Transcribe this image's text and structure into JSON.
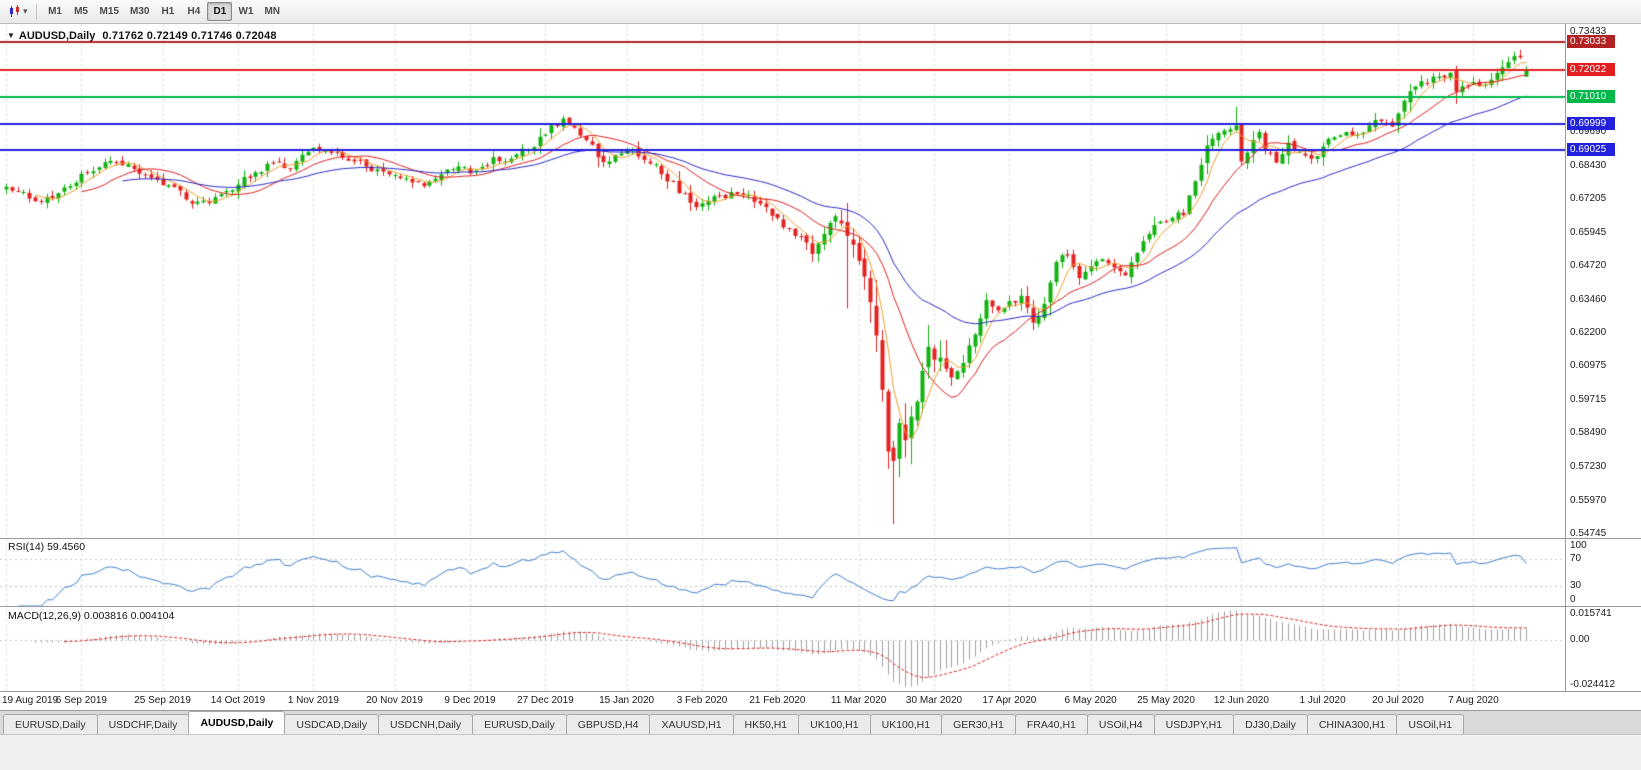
{
  "toolbar": {
    "timeframes": [
      "M1",
      "M5",
      "M15",
      "M30",
      "H1",
      "H4",
      "D1",
      "W1",
      "MN"
    ],
    "active_timeframe": "D1",
    "caret": "▾"
  },
  "chart": {
    "symbol_label": "AUDUSD,Daily",
    "ohlc_text": "0.71762 0.72149 0.71746 0.72048",
    "marker": "▼"
  },
  "rsi_panel": {
    "label": "RSI(14) 59.4560"
  },
  "macd_panel": {
    "label": "MACD(12,26,9) 0.003816 0.004104"
  },
  "tabs": {
    "items": [
      "EURUSD,Daily",
      "USDCHF,Daily",
      "AUDUSD,Daily",
      "USDCAD,Daily",
      "USDCNH,Daily",
      "EURUSD,Daily",
      "GBPUSD,H4",
      "XAUUSD,H1",
      "HK50,H1",
      "UK100,H1",
      "UK100,H1",
      "GER30,H1",
      "FRA40,H1",
      "USOil,H4",
      "USDJPY,H1",
      "DJ30,Daily",
      "CHINA300,H1",
      "USOil,H1"
    ],
    "active_index": 2
  },
  "chart_data": {
    "type": "candlestick",
    "symbol": "AUDUSD",
    "period": "Daily",
    "current_bar": {
      "open": 0.71762,
      "high": 0.72149,
      "low": 0.71746,
      "close": 0.72048
    },
    "count": 263,
    "price_axis": {
      "top": 0.7372,
      "bottom": 0.5458,
      "ticks": [
        "0.73433",
        "0.69690",
        "0.68430",
        "0.67205",
        "0.65945",
        "0.64720",
        "0.63460",
        "0.62200",
        "0.60975",
        "0.59715",
        "0.58490",
        "0.57230",
        "0.55970",
        "0.54745"
      ]
    },
    "hlines": [
      {
        "price": 0.73033,
        "color": "#b22222",
        "label": "0.73033"
      },
      {
        "price": 0.72022,
        "color": "#e02020",
        "label": "0.72022"
      },
      {
        "price": 0.7101,
        "color": "#00b84a",
        "label": "0.71010"
      },
      {
        "price": 0.69999,
        "color": "#2020dd",
        "label": "0.69999"
      },
      {
        "price": 0.69025,
        "color": "#2020dd",
        "label": "0.69025"
      }
    ],
    "date_labels": [
      {
        "i": 0,
        "t": "19 Aug 2019"
      },
      {
        "i": 13,
        "t": "6 Sep 2019"
      },
      {
        "i": 27,
        "t": "25 Sep 2019"
      },
      {
        "i": 40,
        "t": "14 Oct 2019"
      },
      {
        "i": 53,
        "t": "1 Nov 2019"
      },
      {
        "i": 67,
        "t": "20 Nov 2019"
      },
      {
        "i": 80,
        "t": "9 Dec 2019"
      },
      {
        "i": 93,
        "t": "27 Dec 2019"
      },
      {
        "i": 107,
        "t": "15 Jan 2020"
      },
      {
        "i": 120,
        "t": "3 Feb 2020"
      },
      {
        "i": 133,
        "t": "21 Feb 2020"
      },
      {
        "i": 147,
        "t": "11 Mar 2020"
      },
      {
        "i": 160,
        "t": "30 Mar 2020"
      },
      {
        "i": 173,
        "t": "17 Apr 2020"
      },
      {
        "i": 187,
        "t": "6 May 2020"
      },
      {
        "i": 200,
        "t": "25 May 2020"
      },
      {
        "i": 213,
        "t": "12 Jun 2020"
      },
      {
        "i": 227,
        "t": "1 Jul 2020"
      },
      {
        "i": 240,
        "t": "20 Jul 2020"
      },
      {
        "i": 253,
        "t": "7 Aug 2020"
      }
    ],
    "close_anchors": [
      [
        0,
        0.6766
      ],
      [
        2,
        0.6748
      ],
      [
        4,
        0.6722
      ],
      [
        5,
        0.6712
      ],
      [
        7,
        0.6728
      ],
      [
        9,
        0.6742
      ],
      [
        11,
        0.6768
      ],
      [
        14,
        0.682
      ],
      [
        16,
        0.6838
      ],
      [
        18,
        0.6862
      ],
      [
        20,
        0.6846
      ],
      [
        22,
        0.6832
      ],
      [
        24,
        0.681
      ],
      [
        26,
        0.6792
      ],
      [
        28,
        0.6772
      ],
      [
        30,
        0.6752
      ],
      [
        32,
        0.6703
      ],
      [
        34,
        0.6714
      ],
      [
        36,
        0.6727
      ],
      [
        38,
        0.675
      ],
      [
        40,
        0.6774
      ],
      [
        43,
        0.682
      ],
      [
        46,
        0.6856
      ],
      [
        48,
        0.6836
      ],
      [
        50,
        0.6862
      ],
      [
        52,
        0.6896
      ],
      [
        54,
        0.6904
      ],
      [
        56,
        0.6892
      ],
      [
        58,
        0.6875
      ],
      [
        60,
        0.686
      ],
      [
        62,
        0.6842
      ],
      [
        64,
        0.683
      ],
      [
        66,
        0.6812
      ],
      [
        68,
        0.6798
      ],
      [
        70,
        0.6782
      ],
      [
        72,
        0.6768
      ],
      [
        74,
        0.6796
      ],
      [
        76,
        0.683
      ],
      [
        78,
        0.6842
      ],
      [
        80,
        0.6816
      ],
      [
        82,
        0.684
      ],
      [
        84,
        0.6876
      ],
      [
        86,
        0.686
      ],
      [
        88,
        0.6886
      ],
      [
        90,
        0.6904
      ],
      [
        93,
        0.696
      ],
      [
        96,
        0.702
      ],
      [
        98,
        0.6986
      ],
      [
        100,
        0.694
      ],
      [
        102,
        0.6876
      ],
      [
        104,
        0.686
      ],
      [
        106,
        0.689
      ],
      [
        108,
        0.6904
      ],
      [
        110,
        0.6866
      ],
      [
        112,
        0.685
      ],
      [
        114,
        0.6786
      ],
      [
        117,
        0.674
      ],
      [
        119,
        0.669
      ],
      [
        121,
        0.6714
      ],
      [
        123,
        0.673
      ],
      [
        125,
        0.6746
      ],
      [
        127,
        0.6736
      ],
      [
        129,
        0.671
      ],
      [
        131,
        0.669
      ],
      [
        133,
        0.665
      ],
      [
        135,
        0.661
      ],
      [
        137,
        0.658
      ],
      [
        139,
        0.6516
      ],
      [
        141,
        0.659
      ],
      [
        143,
        0.6656
      ],
      [
        145,
        0.6583
      ],
      [
        147,
        0.649
      ],
      [
        149,
        0.6336
      ],
      [
        150,
        0.6212
      ],
      [
        151,
        0.601
      ],
      [
        152,
        0.578
      ],
      [
        153,
        0.5745
      ],
      [
        154,
        0.5886
      ],
      [
        155,
        0.5822
      ],
      [
        156,
        0.591
      ],
      [
        157,
        0.5966
      ],
      [
        158,
        0.608
      ],
      [
        159,
        0.617
      ],
      [
        161,
        0.613
      ],
      [
        163,
        0.6056
      ],
      [
        165,
        0.611
      ],
      [
        167,
        0.6216
      ],
      [
        169,
        0.6344
      ],
      [
        171,
        0.6306
      ],
      [
        173,
        0.634
      ],
      [
        175,
        0.636
      ],
      [
        177,
        0.626
      ],
      [
        179,
        0.633
      ],
      [
        181,
        0.6486
      ],
      [
        183,
        0.651
      ],
      [
        185,
        0.6426
      ],
      [
        187,
        0.647
      ],
      [
        189,
        0.6496
      ],
      [
        191,
        0.6466
      ],
      [
        193,
        0.6436
      ],
      [
        195,
        0.652
      ],
      [
        197,
        0.659
      ],
      [
        199,
        0.6636
      ],
      [
        201,
        0.665
      ],
      [
        203,
        0.666
      ],
      [
        205,
        0.6786
      ],
      [
        207,
        0.692
      ],
      [
        209,
        0.6966
      ],
      [
        211,
        0.698
      ],
      [
        212,
        0.6994
      ],
      [
        213,
        0.686
      ],
      [
        215,
        0.694
      ],
      [
        216,
        0.697
      ],
      [
        217,
        0.69
      ],
      [
        219,
        0.6856
      ],
      [
        221,
        0.693
      ],
      [
        223,
        0.6896
      ],
      [
        225,
        0.687
      ],
      [
        227,
        0.6916
      ],
      [
        229,
        0.695
      ],
      [
        231,
        0.697
      ],
      [
        233,
        0.696
      ],
      [
        235,
        0.6994
      ],
      [
        237,
        0.701
      ],
      [
        239,
        0.699
      ],
      [
        241,
        0.7086
      ],
      [
        243,
        0.714
      ],
      [
        245,
        0.715
      ],
      [
        247,
        0.7176
      ],
      [
        249,
        0.719
      ],
      [
        250,
        0.712
      ],
      [
        251,
        0.714
      ],
      [
        253,
        0.7156
      ],
      [
        255,
        0.7146
      ],
      [
        257,
        0.719
      ],
      [
        259,
        0.723
      ],
      [
        261,
        0.7248
      ],
      [
        262,
        0.72048
      ]
    ],
    "overrides": {
      "145": {
        "l": 0.6313
      },
      "153": {
        "l": 0.551
      },
      "212": {
        "h": 0.7064
      },
      "261": {
        "h": 0.7276
      },
      "262": {
        "o": 0.71762,
        "h": 0.72149,
        "l": 0.71746,
        "c": 0.72048
      }
    },
    "style": {
      "up": "#12b212",
      "down": "#e32222",
      "grid": "#dadada",
      "ma_fast": {
        "period": 5,
        "color": "#f0a030"
      },
      "ma_mid": {
        "period": 13,
        "color": "#e02020"
      },
      "ma_slow": {
        "period": 34,
        "color": "#2828c8"
      }
    },
    "rsi": {
      "period": 14,
      "last": 59.456,
      "line_color": "#3f7fce",
      "levels": [
        "100",
        "70",
        "30",
        "0"
      ],
      "overbought": 70,
      "oversold": 30
    },
    "macd": {
      "fast": 12,
      "slow": 26,
      "signal": 9,
      "value": 0.003816,
      "signal_value": 0.004104,
      "axis_max": 0.015741,
      "axis_min": -0.024412,
      "axis_labels": [
        {
          "v": 0.015741,
          "t": "0.015741"
        },
        {
          "v": 0,
          "t": "0.00"
        },
        {
          "v": -0.024412,
          "t": "-0.024412"
        }
      ],
      "bar_color": "#a0a0a0",
      "signal_color": "#e02020"
    }
  }
}
